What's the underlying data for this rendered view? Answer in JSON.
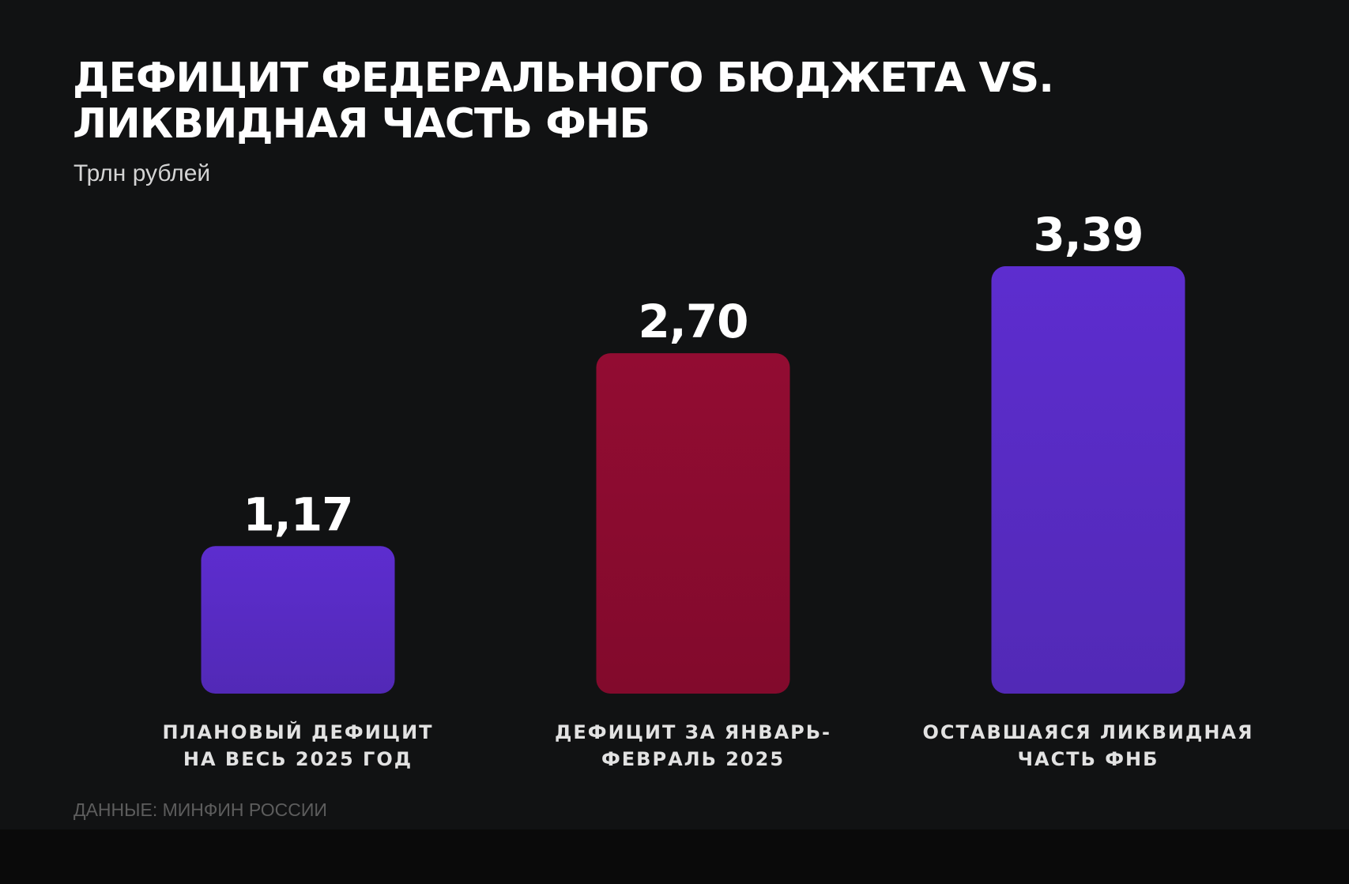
{
  "title_lines": [
    "ДЕФИЦИТ ФЕДЕРАЛЬНОГО БЮДЖЕТА VS.",
    "ЛИКВИДНАЯ ЧАСТЬ ФНБ"
  ],
  "subtitle": "Трлн рублей",
  "source": "ДАННЫЕ: МИНФИН РОССИИ",
  "colors": {
    "background": "#111213",
    "purple_top": "#5d2dcf",
    "purple_bottom": "#5229b6",
    "red_top": "#920c32",
    "red_bottom": "#820a2c",
    "value_label": "#ffffff",
    "category_label": "#e2e2e2"
  },
  "chart_data": {
    "type": "bar",
    "title": "ДЕФИЦИТ ФЕДЕРАЛЬНОГО БЮДЖЕТА VS. ЛИКВИДНАЯ ЧАСТЬ ФНБ",
    "subtitle": "Трлн рублей",
    "categories": [
      "ПЛАНОВЫЙ ДЕФИЦИТ НА ВЕСЬ 2025 ГОД",
      "ДЕФИЦИТ ЗА ЯНВАРЬ-ФЕВРАЛЬ 2025",
      "ОСТАВШАЯСЯ ЛИКВИДНАЯ ЧАСТЬ ФНБ"
    ],
    "category_lines": [
      [
        "ПЛАНОВЫЙ ДЕФИЦИТ",
        "НА ВЕСЬ 2025 ГОД"
      ],
      [
        "ДЕФИЦИТ ЗА ЯНВАРЬ-",
        "ФЕВРАЛЬ 2025"
      ],
      [
        "ОСТАВШАЯСЯ ЛИКВИДНАЯ",
        "ЧАСТЬ ФНБ"
      ]
    ],
    "values": [
      1.17,
      2.7,
      3.39
    ],
    "value_labels": [
      "1,17",
      "2,70",
      "3,39"
    ],
    "bar_colors": [
      "purple",
      "red",
      "purple"
    ],
    "xlabel": "",
    "ylabel": "",
    "grid": false,
    "axis_visible": false
  }
}
